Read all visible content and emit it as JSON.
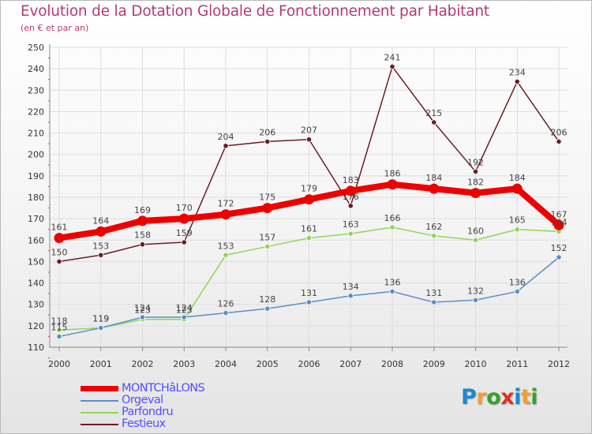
{
  "header": {
    "title": "Evolution de la Dotation Globale de Fonctionnement par Habitant",
    "subtitle": "(en € et par an)"
  },
  "logo": {
    "text": "Proxiti",
    "colors": [
      "#1e88d0",
      "#f0a030",
      "#35a030",
      "#e03020",
      "#1e88d0",
      "#f0a030",
      "#35a030"
    ]
  },
  "colors": {
    "title": "#b53a73",
    "legend_text": "#4f4fff",
    "grid": "#dddddd",
    "axis": "#888888"
  },
  "chart_data": {
    "type": "line",
    "title": "Evolution de la Dotation Globale de Fonctionnement par Habitant",
    "subtitle": "(en € et par an)",
    "xlabel": "",
    "ylabel": "",
    "ylim": [
      110,
      250
    ],
    "ytick_step": 10,
    "grid": true,
    "legend_position": "bottom-left",
    "categories": [
      "2000",
      "2001",
      "2002",
      "2003",
      "2004",
      "2005",
      "2006",
      "2007",
      "2008",
      "2009",
      "2010",
      "2011",
      "2012"
    ],
    "series": [
      {
        "name": "MONTCHâLONS",
        "color": "#ee0000",
        "bold": true,
        "values": [
          161,
          164,
          169,
          170,
          172,
          175,
          179,
          183,
          186,
          184,
          182,
          184,
          167
        ]
      },
      {
        "name": "Orgeval",
        "color": "#5a8fc6",
        "values": [
          115,
          119,
          124,
          124,
          126,
          128,
          131,
          134,
          136,
          131,
          132,
          136,
          152
        ]
      },
      {
        "name": "Parfondru",
        "color": "#8ed65a",
        "values": [
          118,
          119,
          123,
          123,
          153,
          157,
          161,
          163,
          166,
          162,
          160,
          165,
          164
        ]
      },
      {
        "name": "Festieux",
        "color": "#6b1d25",
        "values": [
          150,
          153,
          158,
          159,
          204,
          206,
          207,
          176,
          241,
          215,
          192,
          234,
          206
        ]
      }
    ]
  }
}
